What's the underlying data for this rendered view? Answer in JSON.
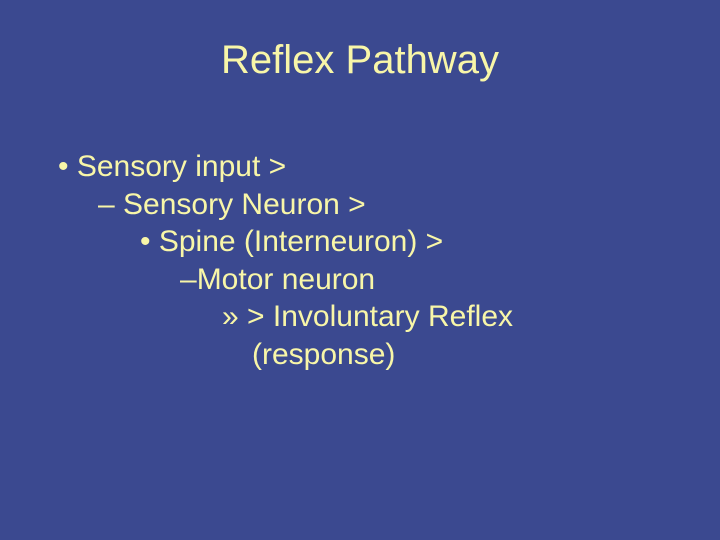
{
  "slide": {
    "background_color": "#3b4990",
    "text_color": "#f8f6a8",
    "title_fontsize": 40,
    "body_fontsize": 30,
    "title": "Reflex Pathway",
    "lines": {
      "l1": "Sensory input >",
      "l2": "Sensory Neuron >",
      "l3": "Spine (Interneuron) >",
      "l4": "Motor neuron",
      "l5": "> Involuntary Reflex",
      "l5b": "(response)"
    }
  }
}
